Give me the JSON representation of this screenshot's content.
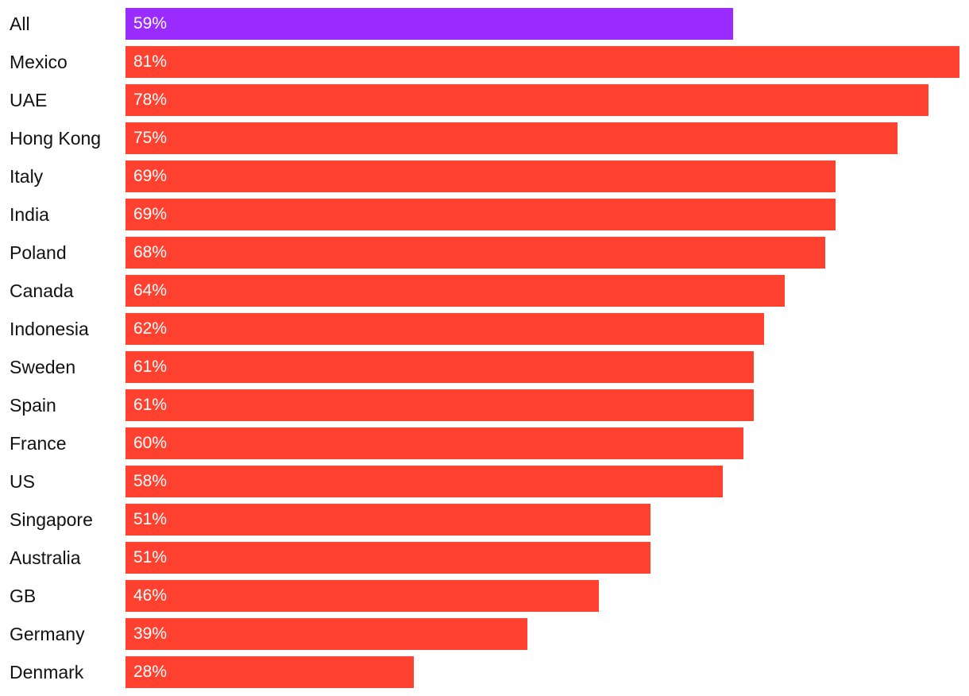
{
  "chart_data": {
    "type": "bar",
    "orientation": "horizontal",
    "title": "",
    "xlabel": "",
    "ylabel": "",
    "xlim": [
      0,
      81
    ],
    "grid": false,
    "unit": "%",
    "categories": [
      "All",
      "Mexico",
      "UAE",
      "Hong Kong",
      "Italy",
      "India",
      "Poland",
      "Canada",
      "Indonesia",
      "Sweden",
      "Spain",
      "France",
      "US",
      "Singapore",
      "Australia",
      "GB",
      "Germany",
      "Denmark"
    ],
    "values": [
      59,
      81,
      78,
      75,
      69,
      69,
      68,
      64,
      62,
      61,
      61,
      60,
      58,
      51,
      51,
      46,
      39,
      28
    ],
    "value_labels": [
      "59%",
      "81%",
      "78%",
      "75%",
      "69%",
      "69%",
      "68%",
      "64%",
      "62%",
      "61%",
      "61%",
      "60%",
      "58%",
      "51%",
      "51%",
      "46%",
      "39%",
      "28%"
    ],
    "bar_colors": [
      "#9b2cff",
      "#ff4130",
      "#ff4130",
      "#ff4130",
      "#ff4130",
      "#ff4130",
      "#ff4130",
      "#ff4130",
      "#ff4130",
      "#ff4130",
      "#ff4130",
      "#ff4130",
      "#ff4130",
      "#ff4130",
      "#ff4130",
      "#ff4130",
      "#ff4130",
      "#ff4130"
    ]
  }
}
